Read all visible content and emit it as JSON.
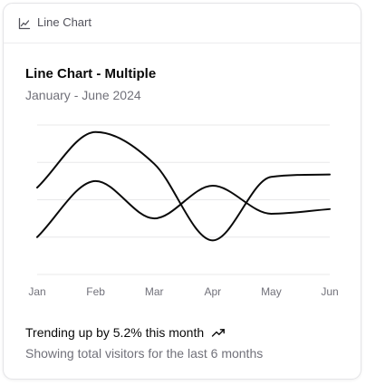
{
  "card": {
    "header_label": "Line Chart",
    "header_icon": "line-chart-icon",
    "title": "Line Chart - Multiple",
    "subtitle": "January - June 2024",
    "trend_text": "Trending up by 5.2% this month",
    "trend_icon": "trending-up-icon",
    "footer_text": "Showing total visitors for the last 6 months"
  },
  "colors": {
    "line": "#0a0a0a",
    "grid": "#e8e8ea",
    "muted_text": "#71717a",
    "border": "#e4e4e7"
  },
  "chart_data": {
    "type": "line",
    "x": [
      "Jan",
      "Feb",
      "Mar",
      "Apr",
      "May",
      "Jun"
    ],
    "series": [
      {
        "values": [
          186,
          305,
          237,
          73,
          209,
          214
        ]
      },
      {
        "values": [
          80,
          200,
          120,
          190,
          130,
          140
        ]
      }
    ],
    "ylim": [
      0,
      320
    ],
    "grid": true,
    "legend": "none"
  }
}
